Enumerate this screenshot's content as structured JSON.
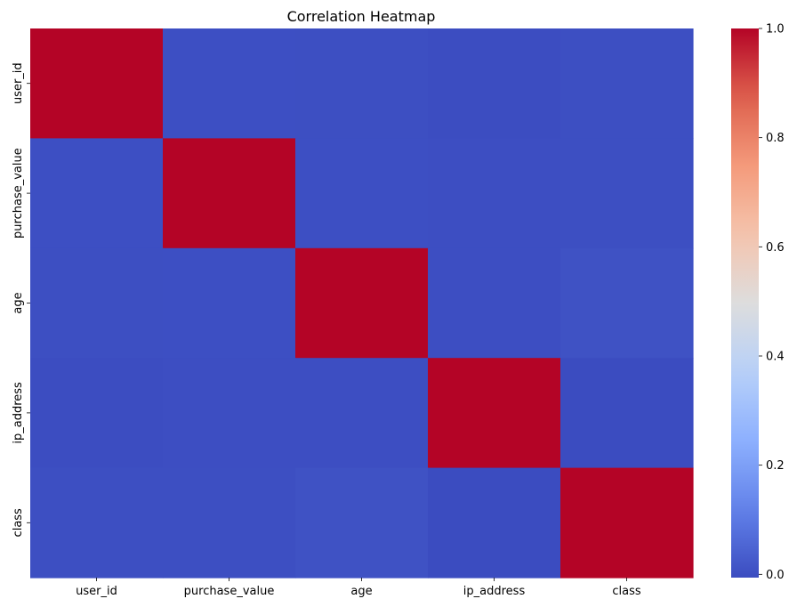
{
  "chart_data": {
    "type": "heatmap",
    "title": "Correlation Heatmap",
    "xlabel": "",
    "ylabel": "",
    "x_categories": [
      "user_id",
      "purchase_value",
      "age",
      "ip_address",
      "class"
    ],
    "y_categories": [
      "user_id",
      "purchase_value",
      "age",
      "ip_address",
      "class"
    ],
    "values": [
      [
        1.0,
        0.002,
        0.001,
        -0.004,
        0.001
      ],
      [
        0.002,
        1.0,
        0.002,
        -0.001,
        0.001
      ],
      [
        0.001,
        0.002,
        1.0,
        -0.001,
        0.007
      ],
      [
        -0.004,
        -0.001,
        -0.001,
        1.0,
        -0.005
      ],
      [
        0.001,
        0.001,
        0.007,
        -0.005,
        1.0
      ]
    ],
    "colormap": "coolwarm",
    "colorbar": {
      "range": [
        -0.006,
        1.0
      ],
      "ticks": [
        0.0,
        0.2,
        0.4,
        0.6,
        0.8,
        1.0
      ],
      "tick_labels": [
        "0.0",
        "0.2",
        "0.4",
        "0.6",
        "0.8",
        "1.0"
      ]
    },
    "grid": false,
    "legend": "none"
  }
}
